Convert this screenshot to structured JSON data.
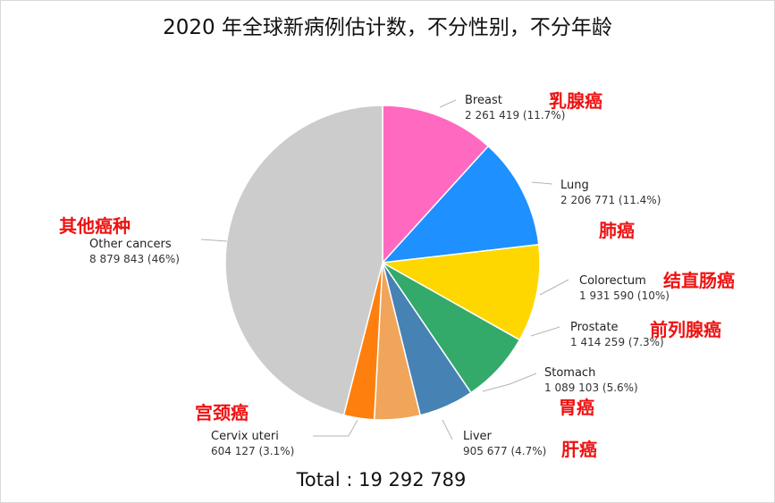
{
  "chart_data": {
    "type": "pie",
    "title": "2020 年全球新病例估计数，不分性别，不分年龄",
    "total_label": "Total : 19 292 789",
    "colors": {
      "breast": "#ff69c0",
      "lung": "#1e90ff",
      "colorectum": "#ffd700",
      "prostate": "#33aa6a",
      "stomach": "#4682b4",
      "liver": "#f0a55a",
      "cervix": "#ff7f0e",
      "other": "#cccccc",
      "leader_line": "#b5b5b5",
      "cn_label": "#ee1111"
    },
    "slices": [
      {
        "key": "breast",
        "name": "Breast",
        "value": 2261419,
        "value_text": "2 261 419 (11.7%)",
        "cn": "乳腺癌",
        "color": "#ff69c0"
      },
      {
        "key": "lung",
        "name": "Lung",
        "value": 2206771,
        "value_text": "2 206 771 (11.4%)",
        "cn": "肺癌",
        "color": "#1e90ff"
      },
      {
        "key": "colorectum",
        "name": "Colorectum",
        "value": 1931590,
        "value_text": "1 931 590 (10%)",
        "cn": "结直肠癌",
        "color": "#ffd700"
      },
      {
        "key": "prostate",
        "name": "Prostate",
        "value": 1414259,
        "value_text": "1 414 259 (7.3%)",
        "cn": "前列腺癌",
        "color": "#33aa6a"
      },
      {
        "key": "stomach",
        "name": "Stomach",
        "value": 1089103,
        "value_text": "1 089 103 (5.6%)",
        "cn": "胃癌",
        "color": "#4682b4"
      },
      {
        "key": "liver",
        "name": "Liver",
        "value": 905677,
        "value_text": "905 677 (4.7%)",
        "cn": "肝癌",
        "color": "#f0a55a"
      },
      {
        "key": "cervix",
        "name": "Cervix uteri",
        "value": 604127,
        "value_text": "604 127 (3.1%)",
        "cn": "宫颈癌",
        "color": "#ff7f0e"
      },
      {
        "key": "other",
        "name": "Other cancers",
        "value": 8879843,
        "value_text": "8 879 843 (46%)",
        "cn": "其他癌种",
        "color": "#cccccc"
      }
    ]
  }
}
